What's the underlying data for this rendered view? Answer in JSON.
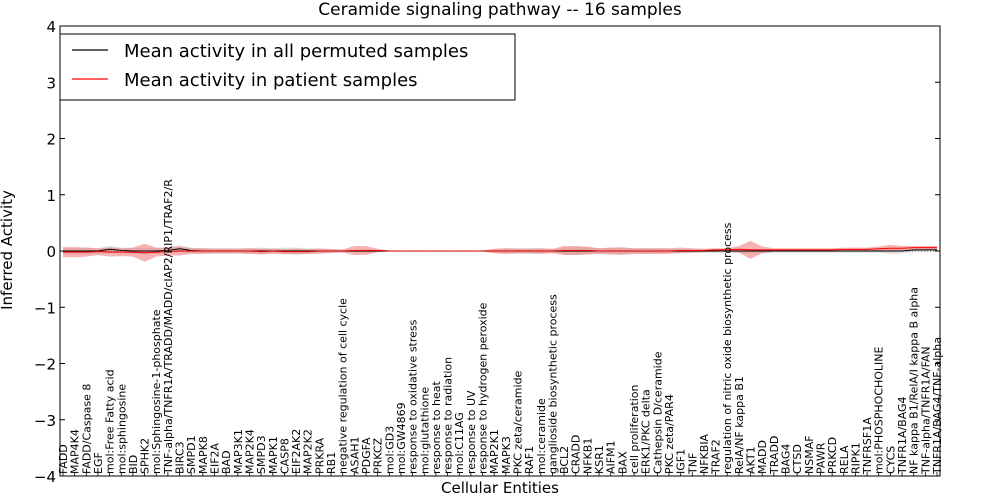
{
  "chart_data": {
    "type": "line",
    "title": "Ceramide signaling pathway -- 16 samples",
    "xlabel": "Cellular Entities",
    "ylabel": "Inferred Activity",
    "ylim": [
      -4,
      4
    ],
    "yticks": [
      -4,
      -3,
      -2,
      -1,
      0,
      1,
      2,
      3,
      4
    ],
    "ytick_labels": [
      "−4",
      "−3",
      "−2",
      "−1",
      "0",
      "1",
      "2",
      "3",
      "4"
    ],
    "grid": false,
    "legend_position": "top-left",
    "categories": [
      "FADD",
      "MAP4K4",
      "FADD/Caspase 8",
      "EGF",
      "mol:Free Fatty acid",
      "mol:sphingosine",
      "BID",
      "SPHK2",
      "mol:Sphingosine-1-phosphate",
      "TNF-alpha/TNFR1A/TRADD/MADD/cIAP2/RIP1/TRAF2/R",
      "BIRC3",
      "SMPD1",
      "MAPK8",
      "EIF2A",
      "BAD",
      "MAP3K1",
      "MAP2K4",
      "SMPD3",
      "MAPK1",
      "CASP8",
      "EIF2AK2",
      "MAP2K2",
      "PRKRA",
      "RB1",
      "negative regulation of cell cycle",
      "ASAH1",
      "PDGFA",
      "PRKCZ",
      "mol:GD3",
      "mol:GW4869",
      "response to oxidative stress",
      "mol:glutathione",
      "response to heat",
      "response to radiation",
      "mol:C11AG",
      "response to UV",
      "response to hydrogen peroxide",
      "MAP2K1",
      "MAPK3",
      "PKC zeta/ceramide",
      "RAF1",
      "mol:ceramide",
      "ganglioside biosynthetic process",
      "BCL2",
      "CRADD",
      "NFKB1",
      "KSR1",
      "AIFM1",
      "BAX",
      "cell proliferation",
      "ERK1/PKC delta",
      "Cathepsin D/ceramide",
      "PKC zeta/PAR4",
      "IGF1",
      "TNF",
      "NFKBIA",
      "TRAF2",
      "regulation of nitric oxide biosynthetic process",
      "RelA/NF kappa B1",
      "AKT1",
      "MADD",
      "TRADD",
      "BAG4",
      "CTSD",
      "NSMAF",
      "PAWR",
      "PRKCD",
      "RELA",
      "RIPK1",
      "TNFRSF1A",
      "mol:PHOSPHOCHOLINE",
      "CYCS",
      "TNFR1A/BAG4",
      "NF kappa B1/RelA/I kappa B alpha",
      "TNF-alpha/TNFR1A/FAN",
      "TNFR1A/BAG4/TNF-alpha"
    ],
    "series": [
      {
        "name": "Mean activity in all permuted samples",
        "color": "#000000",
        "band_color": "#bbbbbb",
        "values": [
          0.0,
          0.0,
          0.0,
          0.0,
          0.03,
          0.01,
          0.0,
          0.0,
          0.0,
          0.01,
          0.04,
          0.01,
          0.0,
          0.0,
          0.0,
          0.0,
          0.0,
          0.0,
          0.0,
          0.0,
          0.0,
          0.0,
          0.0,
          0.0,
          0.0,
          0.0,
          0.0,
          0.0,
          0.0,
          0.0,
          0.0,
          0.0,
          0.0,
          0.0,
          0.0,
          0.0,
          0.0,
          0.0,
          0.0,
          0.0,
          0.0,
          0.0,
          0.0,
          0.0,
          0.0,
          0.0,
          0.0,
          0.0,
          0.0,
          0.0,
          0.0,
          0.0,
          0.0,
          0.0,
          0.0,
          0.0,
          0.0,
          0.0,
          0.0,
          0.0,
          0.0,
          0.0,
          0.0,
          0.0,
          0.0,
          0.0,
          0.0,
          0.0,
          0.0,
          0.0,
          0.0,
          0.0,
          0.0,
          0.02,
          0.02,
          0.02
        ],
        "spread": [
          0.06,
          0.06,
          0.06,
          0.05,
          0.06,
          0.05,
          0.05,
          0.06,
          0.05,
          0.05,
          0.06,
          0.05,
          0.05,
          0.05,
          0.05,
          0.05,
          0.05,
          0.06,
          0.05,
          0.06,
          0.06,
          0.05,
          0.05,
          0.04,
          0.02,
          0.02,
          0.03,
          0.02,
          0.01,
          0.01,
          0.01,
          0.01,
          0.01,
          0.01,
          0.01,
          0.01,
          0.01,
          0.03,
          0.05,
          0.05,
          0.05,
          0.05,
          0.03,
          0.06,
          0.07,
          0.06,
          0.05,
          0.06,
          0.07,
          0.05,
          0.05,
          0.05,
          0.04,
          0.03,
          0.03,
          0.03,
          0.03,
          0.03,
          0.03,
          0.04,
          0.04,
          0.03,
          0.03,
          0.03,
          0.03,
          0.03,
          0.03,
          0.03,
          0.03,
          0.03,
          0.03,
          0.05,
          0.04,
          0.03,
          0.03,
          0.03
        ]
      },
      {
        "name": "Mean activity in patient samples",
        "color": "#ff0000",
        "band_color": "#f08080",
        "values": [
          -0.02,
          -0.02,
          -0.02,
          -0.01,
          -0.02,
          -0.02,
          -0.02,
          -0.03,
          -0.02,
          -0.01,
          0.0,
          0.0,
          0.0,
          0.0,
          0.0,
          0.0,
          0.0,
          -0.01,
          0.0,
          -0.01,
          -0.01,
          -0.01,
          0.0,
          0.0,
          0.0,
          0.01,
          0.01,
          0.01,
          0.0,
          0.0,
          0.0,
          0.0,
          0.0,
          0.0,
          0.0,
          0.0,
          0.0,
          0.0,
          0.0,
          0.0,
          0.0,
          0.0,
          0.0,
          0.01,
          0.01,
          0.01,
          0.0,
          0.0,
          0.0,
          0.0,
          0.0,
          0.0,
          0.0,
          0.01,
          0.01,
          0.01,
          0.02,
          0.02,
          0.03,
          0.02,
          0.02,
          0.02,
          0.02,
          0.02,
          0.02,
          0.02,
          0.02,
          0.03,
          0.03,
          0.03,
          0.04,
          0.05,
          0.05,
          0.06,
          0.06,
          0.06
        ],
        "spread": [
          0.09,
          0.09,
          0.08,
          0.06,
          0.08,
          0.07,
          0.08,
          0.16,
          0.08,
          0.07,
          0.08,
          0.05,
          0.05,
          0.04,
          0.04,
          0.04,
          0.05,
          0.05,
          0.04,
          0.04,
          0.05,
          0.04,
          0.04,
          0.03,
          0.03,
          0.08,
          0.08,
          0.03,
          0.01,
          0.01,
          0.01,
          0.01,
          0.01,
          0.01,
          0.01,
          0.01,
          0.01,
          0.04,
          0.05,
          0.04,
          0.04,
          0.05,
          0.04,
          0.08,
          0.08,
          0.07,
          0.05,
          0.06,
          0.06,
          0.05,
          0.05,
          0.05,
          0.05,
          0.05,
          0.04,
          0.03,
          0.03,
          0.03,
          0.06,
          0.16,
          0.06,
          0.03,
          0.03,
          0.03,
          0.03,
          0.03,
          0.03,
          0.03,
          0.03,
          0.03,
          0.04,
          0.06,
          0.04,
          0.03,
          0.03,
          0.03
        ]
      }
    ]
  }
}
